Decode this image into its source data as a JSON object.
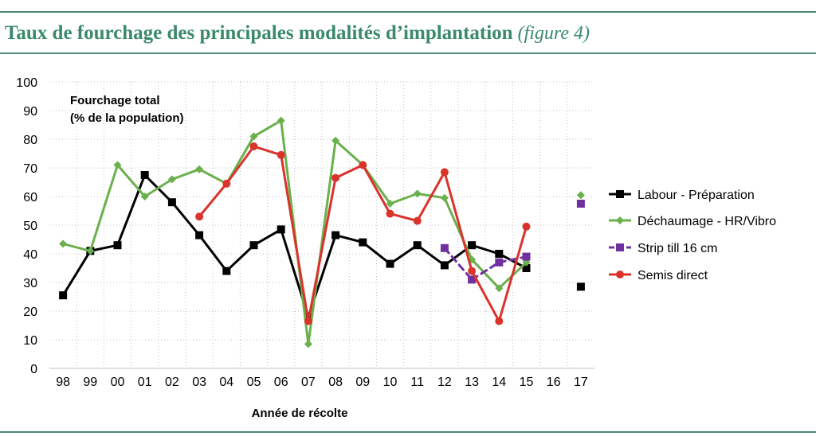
{
  "header": {
    "title": "Taux de fourchage des principales modalités d’implantation",
    "figure_ref": "(figure 4)"
  },
  "chart_data": {
    "type": "line",
    "categories": [
      "98",
      "99",
      "00",
      "01",
      "02",
      "03",
      "04",
      "05",
      "06",
      "07",
      "08",
      "09",
      "10",
      "11",
      "12",
      "13",
      "14",
      "15",
      "16",
      "17"
    ],
    "ylabel_line1": "Fourchage total",
    "ylabel_line2": "(% de la population)",
    "xlabel": "Année de récolte",
    "ylim": [
      0,
      100
    ],
    "yticks": [
      0,
      10,
      20,
      30,
      40,
      50,
      60,
      70,
      80,
      90,
      100
    ],
    "grid": "horizontal and vertical dotted",
    "legend_position": "right",
    "series": [
      {
        "name": "Labour - Préparation",
        "color": "#000000",
        "marker": "square",
        "line": "solid",
        "values": [
          25.5,
          41,
          43,
          67.5,
          58,
          46.5,
          34,
          43,
          48.5,
          18,
          46.5,
          44,
          36.5,
          43,
          36,
          43,
          40,
          35,
          null,
          28.5
        ]
      },
      {
        "name": "Déchaumage - HR/Vibro",
        "color": "#6ab04c",
        "marker": "diamond",
        "line": "solid",
        "values": [
          43.5,
          41,
          71,
          60,
          66,
          69.5,
          64.5,
          81,
          86.5,
          8.5,
          79.5,
          71,
          57.5,
          61,
          59.5,
          38,
          28,
          37,
          null,
          60.5
        ]
      },
      {
        "name": "Strip till 16 cm",
        "color": "#7030a0",
        "marker": "square",
        "line": "dashed",
        "values": [
          null,
          null,
          null,
          null,
          null,
          null,
          null,
          null,
          null,
          null,
          null,
          null,
          null,
          null,
          42,
          31,
          37,
          39,
          null,
          57.5
        ]
      },
      {
        "name": "Semis direct",
        "color": "#d9332b",
        "marker": "circle",
        "line": "solid",
        "values": [
          null,
          null,
          null,
          null,
          null,
          53,
          64.5,
          77.5,
          74.5,
          16.5,
          66.5,
          71,
          54,
          51.5,
          68.5,
          34,
          16.5,
          49.5,
          null,
          null
        ]
      }
    ]
  }
}
